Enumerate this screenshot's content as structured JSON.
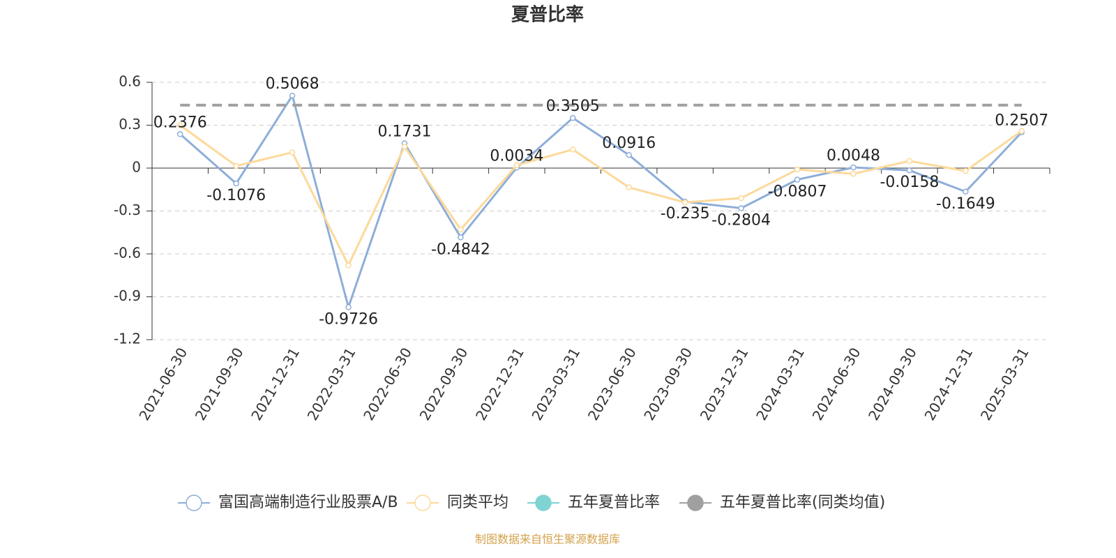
{
  "chart_data": {
    "type": "line",
    "title": "夏普比率",
    "categories": [
      "2021-06-30",
      "2021-09-30",
      "2021-12-31",
      "2022-03-31",
      "2022-06-30",
      "2022-09-30",
      "2022-12-31",
      "2023-03-31",
      "2023-06-30",
      "2023-09-30",
      "2023-12-31",
      "2024-03-31",
      "2024-06-30",
      "2024-09-30",
      "2024-12-31",
      "2025-03-31"
    ],
    "series": [
      {
        "name": "富国高端制造行业股票A/B",
        "color": "#8eaed8",
        "values": [
          0.2376,
          -0.1076,
          0.5068,
          -0.9726,
          0.1731,
          -0.4842,
          0.0034,
          0.3505,
          0.0916,
          -0.235,
          -0.2804,
          -0.0807,
          0.0048,
          -0.0158,
          -0.1649,
          0.2507
        ]
      },
      {
        "name": "同类平均",
        "color": "#fcd99a",
        "values": [
          0.3,
          0.015,
          0.11,
          -0.68,
          0.15,
          -0.43,
          0.02,
          0.13,
          -0.135,
          -0.24,
          -0.21,
          -0.01,
          -0.04,
          0.05,
          -0.02,
          0.26
        ]
      },
      {
        "name": "五年夏普比率",
        "color": "#7fd3d3",
        "values": [
          null,
          null,
          null,
          null,
          null,
          null,
          null,
          null,
          null,
          null,
          null,
          null,
          null,
          null,
          null,
          null
        ]
      },
      {
        "name": "五年夏普比率(同类均值)",
        "color": "#a0a0a0",
        "values": [
          0.44,
          0.44,
          0.44,
          0.44,
          0.44,
          0.44,
          0.44,
          0.44,
          0.44,
          0.44,
          0.44,
          0.44,
          0.44,
          0.44,
          0.44,
          0.44
        ]
      }
    ],
    "ylim": [
      -1.2,
      0.6
    ],
    "yticks": [
      0.6,
      0.3,
      0,
      -0.3,
      -0.6,
      -0.9,
      -1.2
    ],
    "grid": true,
    "source": "制图数据来自恒生聚源数据库"
  }
}
